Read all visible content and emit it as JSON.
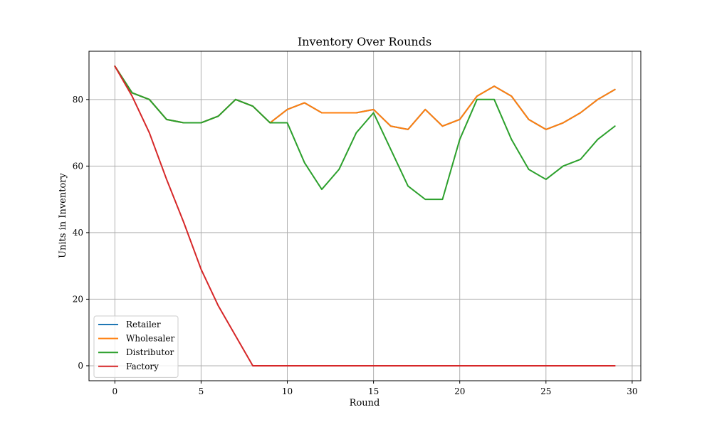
{
  "chart_data": {
    "type": "line",
    "title": "Inventory Over Rounds",
    "xlabel": "Round",
    "ylabel": "Units in Inventory",
    "xlim": [
      -1.5,
      30.5
    ],
    "ylim": [
      -4.5,
      94.5
    ],
    "xticks": [
      0,
      5,
      10,
      15,
      20,
      25,
      30
    ],
    "yticks": [
      0,
      20,
      40,
      60,
      80
    ],
    "grid": true,
    "legend_position": "lower-left",
    "x": [
      0,
      1,
      2,
      3,
      4,
      5,
      6,
      7,
      8,
      9,
      10,
      11,
      12,
      13,
      14,
      15,
      16,
      17,
      18,
      19,
      20,
      21,
      22,
      23,
      24,
      25,
      26,
      27,
      28,
      29
    ],
    "series": [
      {
        "name": "Retailer",
        "color": "#1f77b4",
        "values": [
          90,
          82,
          80,
          74,
          73,
          73,
          75,
          80,
          78,
          73,
          77,
          79,
          76,
          76,
          76,
          77,
          72,
          71,
          77,
          72,
          74,
          81,
          84,
          81,
          74,
          71,
          73,
          76,
          80,
          83
        ]
      },
      {
        "name": "Wholesaler",
        "color": "#ff7f0e",
        "values": [
          90,
          82,
          80,
          74,
          73,
          73,
          75,
          80,
          78,
          73,
          77,
          79,
          76,
          76,
          76,
          77,
          72,
          71,
          77,
          72,
          74,
          81,
          84,
          81,
          74,
          71,
          73,
          76,
          80,
          83
        ]
      },
      {
        "name": "Distributor",
        "color": "#2ca02c",
        "values": [
          90,
          82,
          80,
          74,
          73,
          73,
          75,
          80,
          78,
          73,
          73,
          61,
          53,
          59,
          70,
          76,
          65,
          54,
          50,
          50,
          68,
          80,
          80,
          68,
          59,
          56,
          60,
          62,
          68,
          72
        ]
      },
      {
        "name": "Factory",
        "color": "#d62728",
        "values": [
          90,
          81,
          70,
          56,
          43,
          29,
          18,
          9,
          0,
          0,
          0,
          0,
          0,
          0,
          0,
          0,
          0,
          0,
          0,
          0,
          0,
          0,
          0,
          0,
          0,
          0,
          0,
          0,
          0,
          0
        ]
      }
    ]
  }
}
